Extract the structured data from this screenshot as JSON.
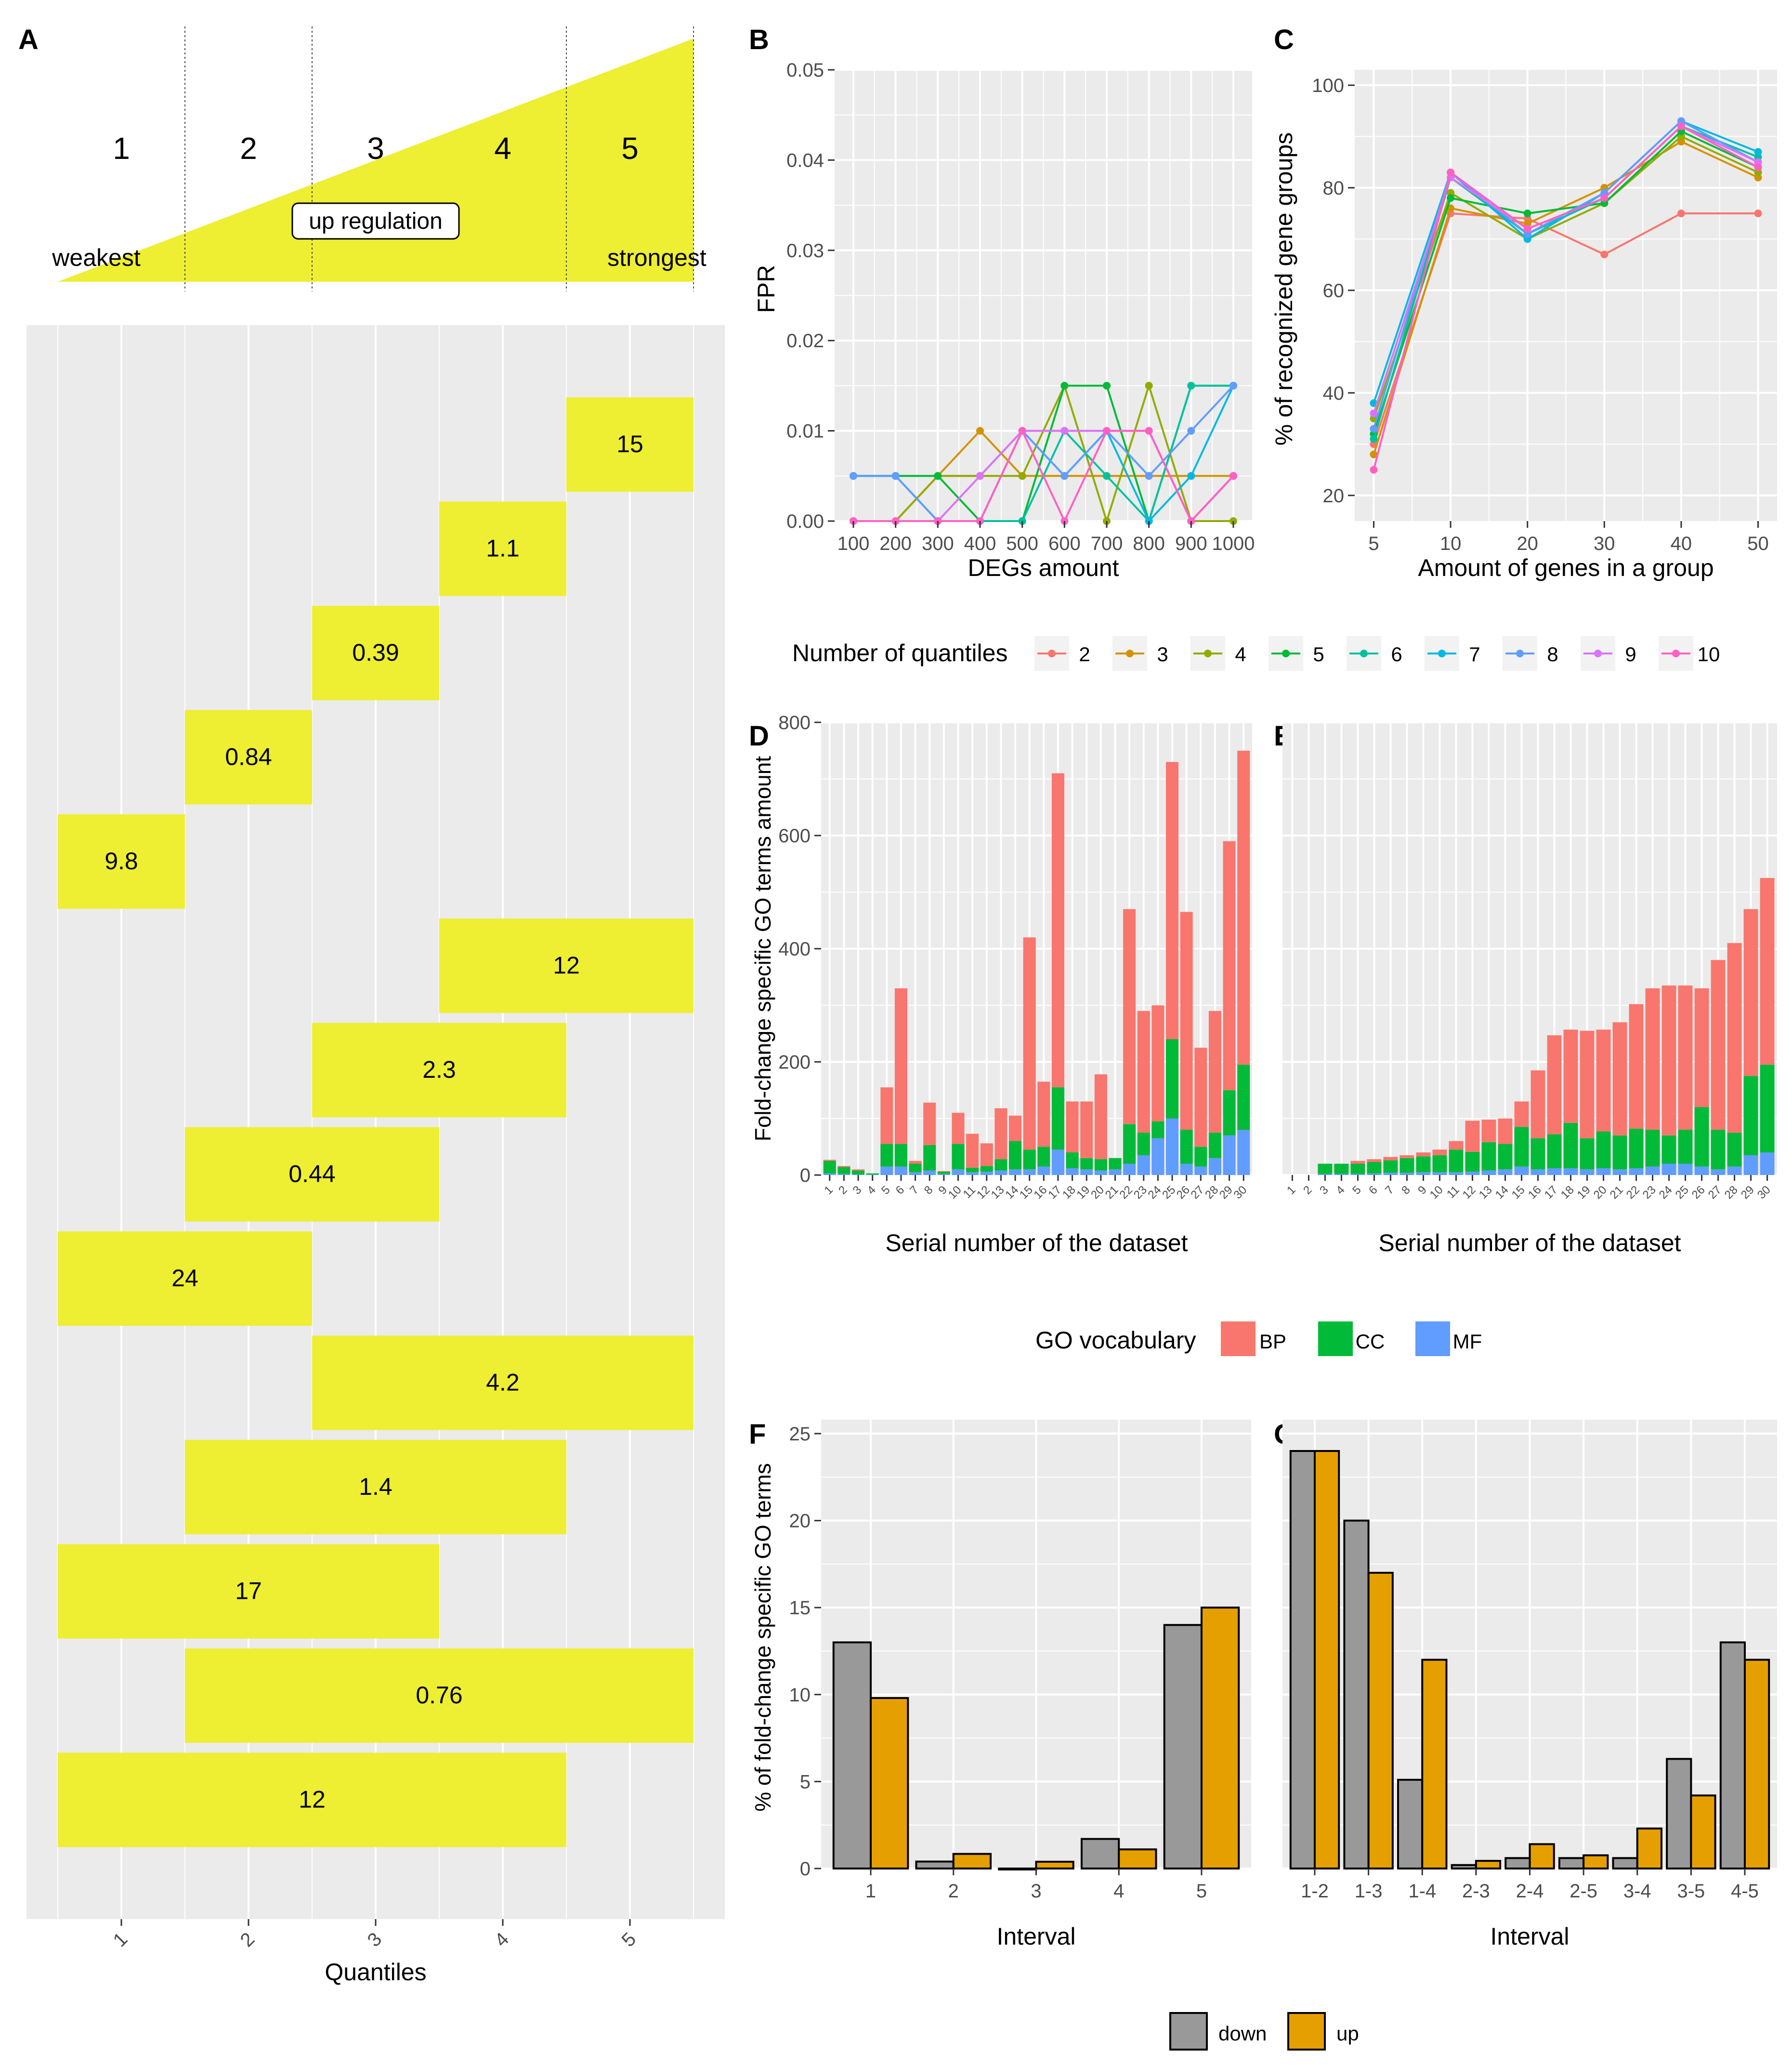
{
  "figure": {
    "panel_labels": [
      "A",
      "B",
      "C",
      "D",
      "E",
      "F",
      "G"
    ]
  },
  "chart_data": [
    {
      "id": "A",
      "type": "interval-diagram",
      "header": {
        "quantiles": [
          "1",
          "2",
          "3",
          "4",
          "5"
        ],
        "arrow_label": "up regulation",
        "left_label": "weakest",
        "right_label": "strongest",
        "fill_color": "#EEEE33"
      },
      "xlabel": "Quantiles",
      "tick_labels": [
        "1",
        "2",
        "3",
        "4",
        "5"
      ],
      "intervals": [
        {
          "from": 5,
          "to": 5,
          "label": "15"
        },
        {
          "from": 4,
          "to": 4,
          "label": "1.1"
        },
        {
          "from": 3,
          "to": 3,
          "label": "0.39"
        },
        {
          "from": 2,
          "to": 2,
          "label": "0.84"
        },
        {
          "from": 1,
          "to": 1,
          "label": "9.8"
        },
        {
          "from": 4,
          "to": 5,
          "label": "12"
        },
        {
          "from": 3,
          "to": 4,
          "label": "2.3"
        },
        {
          "from": 2,
          "to": 3,
          "label": "0.44"
        },
        {
          "from": 1,
          "to": 2,
          "label": "24"
        },
        {
          "from": 3,
          "to": 5,
          "label": "4.2"
        },
        {
          "from": 2,
          "to": 4,
          "label": "1.4"
        },
        {
          "from": 1,
          "to": 3,
          "label": "17"
        },
        {
          "from": 2,
          "to": 5,
          "label": "0.76"
        },
        {
          "from": 1,
          "to": 4,
          "label": "12"
        }
      ]
    },
    {
      "id": "B",
      "type": "line",
      "xlabel": "DEGs amount",
      "ylabel": "FPR",
      "categories": [
        "100",
        "200",
        "300",
        "400",
        "500",
        "600",
        "700",
        "800",
        "900",
        "1000"
      ],
      "ylim": [
        0,
        0.05
      ],
      "yticks": [
        0,
        0.01,
        0.02,
        0.03,
        0.04,
        0.05
      ],
      "ytick_labels": [
        "0.00",
        "0.01",
        "0.02",
        "0.03",
        "0.04",
        "0.05"
      ],
      "series": [
        {
          "name": "2",
          "values": [
            0,
            0,
            0.005,
            0.005,
            0.01,
            0.01,
            0.01,
            0.01,
            0,
            0.005
          ]
        },
        {
          "name": "3",
          "values": [
            0,
            0,
            0.005,
            0.01,
            0.005,
            0.005,
            0.005,
            0.005,
            0.005,
            0.005
          ]
        },
        {
          "name": "4",
          "values": [
            0,
            0,
            0.005,
            0.005,
            0.005,
            0.015,
            0,
            0.015,
            0,
            0
          ]
        },
        {
          "name": "5",
          "values": [
            0.005,
            0.005,
            0.005,
            0,
            0,
            0.015,
            0.015,
            0,
            0.015,
            0.015
          ]
        },
        {
          "name": "6",
          "values": [
            0.005,
            0.005,
            0,
            0,
            0,
            0.01,
            0.005,
            0,
            0.015,
            0.015
          ]
        },
        {
          "name": "7",
          "values": [
            0.005,
            0.005,
            0,
            0,
            0.01,
            0.005,
            0.01,
            0,
            0.005,
            0.015
          ]
        },
        {
          "name": "8",
          "values": [
            0.005,
            0.005,
            0,
            0,
            0.01,
            0.005,
            0.01,
            0.005,
            0.01,
            0.015
          ]
        },
        {
          "name": "9",
          "values": [
            0,
            0,
            0,
            0.005,
            0.01,
            0.01,
            0.01,
            0.01,
            0,
            0.005
          ]
        },
        {
          "name": "10",
          "values": [
            0,
            0,
            0,
            0,
            0.01,
            0,
            0.01,
            0.01,
            0,
            0.005
          ]
        }
      ]
    },
    {
      "id": "C",
      "type": "line",
      "xlabel": "Amount of genes in a group",
      "ylabel": "% of recognized gene groups",
      "categories": [
        "5",
        "10",
        "20",
        "30",
        "40",
        "50"
      ],
      "ylim": [
        15,
        103
      ],
      "yticks": [
        20,
        40,
        60,
        80,
        100
      ],
      "series": [
        {
          "name": "2",
          "values": [
            30,
            75,
            74,
            67,
            75,
            75
          ]
        },
        {
          "name": "3",
          "values": [
            28,
            76,
            73,
            80,
            89,
            82
          ]
        },
        {
          "name": "4",
          "values": [
            35,
            79,
            70,
            77,
            90,
            83
          ]
        },
        {
          "name": "5",
          "values": [
            32,
            78,
            75,
            77,
            91,
            84
          ]
        },
        {
          "name": "6",
          "values": [
            31,
            82,
            71,
            78,
            92,
            86
          ]
        },
        {
          "name": "7",
          "values": [
            38,
            83,
            70,
            79,
            93,
            87
          ]
        },
        {
          "name": "8",
          "values": [
            33,
            83,
            71,
            79,
            93,
            85
          ]
        },
        {
          "name": "9",
          "values": [
            36,
            82,
            72,
            78,
            92,
            85
          ]
        },
        {
          "name": "10",
          "values": [
            25,
            83,
            72,
            78,
            92,
            84
          ]
        }
      ]
    },
    {
      "id": "D",
      "type": "bar",
      "stacked": true,
      "xlabel": "Serial number of the dataset",
      "ylabel": "Fold-change specific GO terms amount",
      "categories": [
        "1",
        "2",
        "3",
        "4",
        "5",
        "6",
        "7",
        "8",
        "9",
        "10",
        "11",
        "12",
        "13",
        "14",
        "15",
        "16",
        "17",
        "18",
        "19",
        "20",
        "21",
        "22",
        "23",
        "24",
        "25",
        "26",
        "27",
        "28",
        "29",
        "30"
      ],
      "ylim": [
        0,
        800
      ],
      "yticks": [
        0,
        200,
        400,
        600,
        800
      ],
      "series": [
        {
          "name": "MF",
          "values": [
            3,
            2,
            1,
            1,
            15,
            15,
            5,
            8,
            2,
            10,
            5,
            6,
            8,
            10,
            10,
            15,
            45,
            12,
            10,
            8,
            10,
            20,
            35,
            65,
            100,
            20,
            15,
            30,
            70,
            80
          ]
        },
        {
          "name": "CC",
          "values": [
            22,
            12,
            7,
            2,
            40,
            40,
            15,
            45,
            4,
            45,
            8,
            10,
            20,
            50,
            35,
            35,
            110,
            28,
            20,
            20,
            20,
            70,
            40,
            30,
            140,
            60,
            35,
            45,
            80,
            115
          ]
        },
        {
          "name": "BP",
          "values": [
            2,
            2,
            2,
            0,
            100,
            275,
            5,
            75,
            1,
            55,
            60,
            40,
            90,
            45,
            375,
            115,
            555,
            90,
            100,
            150,
            0,
            380,
            215,
            205,
            490,
            385,
            175,
            215,
            440,
            555
          ]
        }
      ]
    },
    {
      "id": "E",
      "type": "bar",
      "stacked": true,
      "xlabel": "Serial number of the dataset",
      "categories": [
        "1",
        "2",
        "3",
        "4",
        "5",
        "6",
        "7",
        "8",
        "9",
        "10",
        "11",
        "12",
        "13",
        "14",
        "15",
        "16",
        "17",
        "18",
        "19",
        "20",
        "21",
        "22",
        "23",
        "24",
        "25",
        "26",
        "27",
        "28",
        "29",
        "30"
      ],
      "ylim": [
        0,
        800
      ],
      "yticks": [
        0,
        200,
        400,
        600,
        800
      ],
      "series": [
        {
          "name": "MF",
          "values": [
            0,
            0,
            2,
            2,
            2,
            3,
            4,
            4,
            5,
            5,
            5,
            6,
            8,
            10,
            15,
            10,
            12,
            12,
            10,
            12,
            10,
            12,
            15,
            20,
            20,
            15,
            10,
            15,
            35,
            40
          ]
        },
        {
          "name": "CC",
          "values": [
            0,
            0,
            18,
            18,
            18,
            20,
            22,
            26,
            28,
            30,
            40,
            35,
            50,
            45,
            70,
            55,
            60,
            80,
            55,
            65,
            60,
            70,
            65,
            50,
            60,
            105,
            70,
            60,
            140,
            155
          ]
        },
        {
          "name": "BP",
          "values": [
            0,
            0,
            0,
            0,
            5,
            5,
            6,
            5,
            7,
            10,
            15,
            55,
            40,
            45,
            45,
            120,
            175,
            165,
            190,
            180,
            200,
            220,
            250,
            265,
            255,
            210,
            300,
            335,
            295,
            330
          ]
        }
      ]
    },
    {
      "id": "F",
      "type": "bar",
      "xlabel": "Interval",
      "ylabel": "% of fold-change specific GO terms",
      "categories": [
        "1",
        "2",
        "3",
        "4",
        "5"
      ],
      "ylim": [
        0,
        25.8
      ],
      "yticks": [
        0,
        5,
        10,
        15,
        20,
        25
      ],
      "series": [
        {
          "name": "down",
          "values": [
            13,
            0.4,
            0,
            1.7,
            14
          ]
        },
        {
          "name": "up",
          "values": [
            9.8,
            0.84,
            0.39,
            1.1,
            15
          ]
        }
      ]
    },
    {
      "id": "G",
      "type": "bar",
      "xlabel": "Interval",
      "categories": [
        "1-2",
        "1-3",
        "1-4",
        "2-3",
        "2-4",
        "2-5",
        "3-4",
        "3-5",
        "4-5"
      ],
      "ylim": [
        0,
        25.8
      ],
      "yticks": [
        0,
        5,
        10,
        15,
        20,
        25
      ],
      "series": [
        {
          "name": "down",
          "values": [
            24,
            20,
            5.1,
            0.2,
            0.6,
            0.6,
            0.6,
            6.3,
            13
          ]
        },
        {
          "name": "up",
          "values": [
            24,
            17,
            12,
            0.44,
            1.4,
            0.76,
            2.3,
            4.2,
            12
          ]
        }
      ]
    }
  ],
  "legends": {
    "quantiles": {
      "title": "Number of quantiles",
      "items": [
        {
          "label": "2",
          "color": "#F8766D"
        },
        {
          "label": "3",
          "color": "#D39200"
        },
        {
          "label": "4",
          "color": "#93AA00"
        },
        {
          "label": "5",
          "color": "#00BA38"
        },
        {
          "label": "6",
          "color": "#00C19F"
        },
        {
          "label": "7",
          "color": "#00B9E3"
        },
        {
          "label": "8",
          "color": "#619CFF"
        },
        {
          "label": "9",
          "color": "#DB72FB"
        },
        {
          "label": "10",
          "color": "#FF61C3"
        }
      ]
    },
    "go_vocabulary": {
      "title": "GO vocabulary",
      "items": [
        {
          "label": "BP",
          "color": "#F8766D"
        },
        {
          "label": "CC",
          "color": "#00BA38"
        },
        {
          "label": "MF",
          "color": "#619CFF"
        }
      ]
    },
    "direction": {
      "items": [
        {
          "label": "down",
          "color": "#999999"
        },
        {
          "label": "up",
          "color": "#E69F00"
        }
      ]
    }
  }
}
